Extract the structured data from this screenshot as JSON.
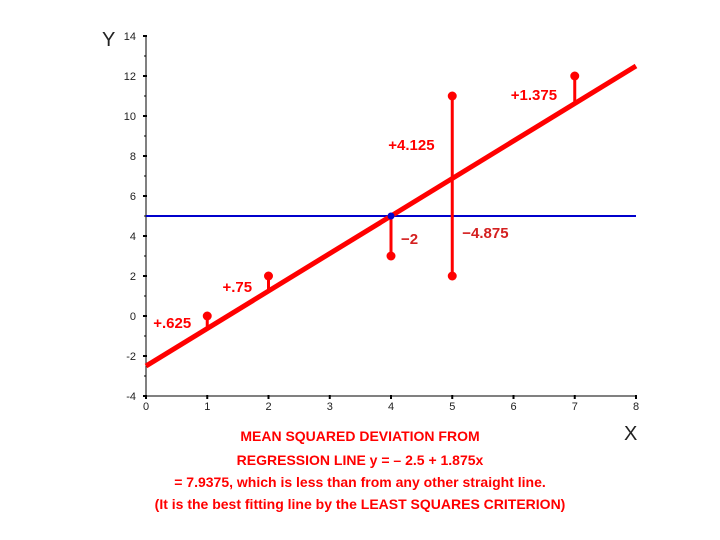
{
  "chart_data": {
    "type": "scatter",
    "xlabel": "X",
    "ylabel": "Y",
    "xlim": [
      0,
      8
    ],
    "ylim": [
      -4,
      14
    ],
    "x_ticks": [
      0,
      1,
      2,
      3,
      4,
      5,
      6,
      7,
      8
    ],
    "y_ticks": [
      -4,
      -2,
      0,
      2,
      4,
      6,
      8,
      10,
      12,
      14
    ],
    "grid": false,
    "points": [
      {
        "x": 1,
        "y": 0
      },
      {
        "x": 2,
        "y": 2
      },
      {
        "x": 4,
        "y": 3
      },
      {
        "x": 5,
        "y": 11
      },
      {
        "x": 5,
        "y": 2
      },
      {
        "x": 7,
        "y": 12
      }
    ],
    "mean_line": {
      "y": 5,
      "color": "#0000cc"
    },
    "mean_point": {
      "x": 4,
      "y": 5
    },
    "regression_line": {
      "intercept": -2.5,
      "slope": 1.875,
      "color": "#ff0000"
    },
    "deviations": [
      {
        "x": 1,
        "y": 0,
        "label": "+.625"
      },
      {
        "x": 2,
        "y": 2,
        "label": "+.75"
      },
      {
        "x": 4,
        "y": 3,
        "label": "−2"
      },
      {
        "x": 5,
        "y": 11,
        "label": "+4.125"
      },
      {
        "x": 5,
        "y": 2,
        "label": "−4.875"
      },
      {
        "x": 7,
        "y": 12,
        "label": "+1.375"
      }
    ],
    "caption": [
      "MEAN SQUARED DEVIATION FROM",
      "REGRESSION LINE  y = – 2.5 + 1.875x",
      "= 7.9375, which is less than from any other straight line.",
      "(It is the best fitting line by the LEAST SQUARES CRITERION)"
    ]
  },
  "colors": {
    "accent": "#ff0000",
    "mean_line": "#0000cc",
    "axis": "#000000",
    "dev_label_dark": "#ff0000",
    "dev_label_dark_neg": "#d42020"
  }
}
